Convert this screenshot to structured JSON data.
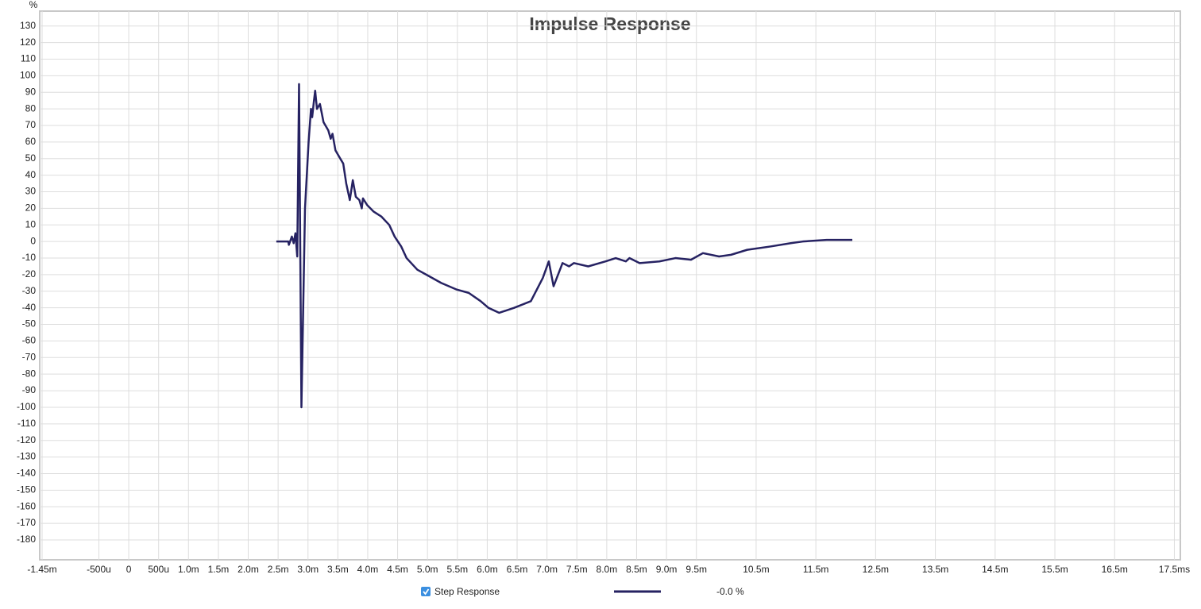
{
  "chart_data": {
    "type": "line",
    "title": "Impulse Response",
    "y_label": "%",
    "x": [
      2.47,
      2.67,
      2.68,
      2.73,
      2.76,
      2.79,
      2.82,
      2.85,
      2.89,
      2.95,
      3.01,
      3.05,
      3.07,
      3.1,
      3.12,
      3.15,
      3.2,
      3.26,
      3.34,
      3.38,
      3.41,
      3.46,
      3.54,
      3.59,
      3.64,
      3.7,
      3.75,
      3.8,
      3.86,
      3.9,
      3.92,
      3.99,
      4.1,
      4.23,
      4.36,
      4.45,
      4.56,
      4.65,
      4.83,
      5.03,
      5.23,
      5.49,
      5.69,
      5.89,
      6.02,
      6.2,
      6.45,
      6.73,
      6.93,
      7.03,
      7.11,
      7.26,
      7.37,
      7.45,
      7.69,
      7.98,
      8.15,
      8.32,
      8.38,
      8.55,
      8.88,
      9.15,
      9.41,
      9.61,
      9.88,
      10.08,
      10.35,
      10.74,
      11.08,
      11.28,
      11.68,
      12.11
    ],
    "series": [
      {
        "name": "Step Response",
        "color": "#262262",
        "values": [
          0,
          0,
          -2,
          3,
          -1,
          5,
          -9,
          95,
          -100,
          20,
          60,
          80,
          75,
          85,
          91,
          80,
          83,
          72,
          67,
          62,
          65,
          55,
          50,
          47,
          35,
          25,
          37,
          27,
          25,
          20,
          26,
          22,
          18,
          15,
          10,
          3,
          -3,
          -10,
          -17,
          -21,
          -25,
          -29,
          -31,
          -36,
          -40,
          -43,
          -40,
          -36,
          -22,
          -12,
          -27,
          -13,
          -15,
          -13,
          -15,
          -12,
          -10,
          -12,
          -10,
          -13,
          -12,
          -10,
          -11,
          -7,
          -9,
          -8,
          -5,
          -3,
          -1,
          0,
          1,
          1
        ]
      }
    ],
    "legend_value": "-0.0 %",
    "xlim": [
      -1.49,
      17.6
    ],
    "ylim": [
      -192,
      139
    ],
    "xticks": [
      {
        "value": -1.45,
        "label": "-1.45m"
      },
      {
        "value": -0.5,
        "label": "-500u"
      },
      0,
      {
        "value": 0.5,
        "label": "500u"
      },
      {
        "value": 1,
        "label": "1.0m"
      },
      {
        "value": 1.5,
        "label": "1.5m"
      },
      {
        "value": 2,
        "label": "2.0m"
      },
      {
        "value": 2.5,
        "label": "2.5m"
      },
      {
        "value": 3,
        "label": "3.0m"
      },
      {
        "value": 3.5,
        "label": "3.5m"
      },
      {
        "value": 4,
        "label": "4.0m"
      },
      {
        "value": 4.5,
        "label": "4.5m"
      },
      {
        "value": 5,
        "label": "5.0m"
      },
      {
        "value": 5.5,
        "label": "5.5m"
      },
      {
        "value": 6,
        "label": "6.0m"
      },
      {
        "value": 6.5,
        "label": "6.5m"
      },
      {
        "value": 7,
        "label": "7.0m"
      },
      {
        "value": 7.5,
        "label": "7.5m"
      },
      {
        "value": 8,
        "label": "8.0m"
      },
      {
        "value": 8.5,
        "label": "8.5m"
      },
      {
        "value": 9,
        "label": "9.0m"
      },
      {
        "value": 9.5,
        "label": "9.5m"
      },
      {
        "value": 10.5,
        "label": "10.5m"
      },
      {
        "value": 11.5,
        "label": "11.5m"
      },
      {
        "value": 12.5,
        "label": "12.5m"
      },
      {
        "value": 13.5,
        "label": "13.5m"
      },
      {
        "value": 14.5,
        "label": "14.5m"
      },
      {
        "value": 15.5,
        "label": "15.5m"
      },
      {
        "value": 16.5,
        "label": "16.5m"
      },
      {
        "value": 17.5,
        "label": "17.5ms"
      }
    ],
    "yticks": [
      130,
      120,
      110,
      100,
      90,
      80,
      70,
      60,
      50,
      40,
      30,
      20,
      10,
      0,
      -10,
      -20,
      -30,
      -40,
      -50,
      -60,
      -70,
      -80,
      -90,
      -100,
      -110,
      -120,
      -130,
      -140,
      -150,
      -160,
      -170,
      -180
    ],
    "grid": true
  }
}
